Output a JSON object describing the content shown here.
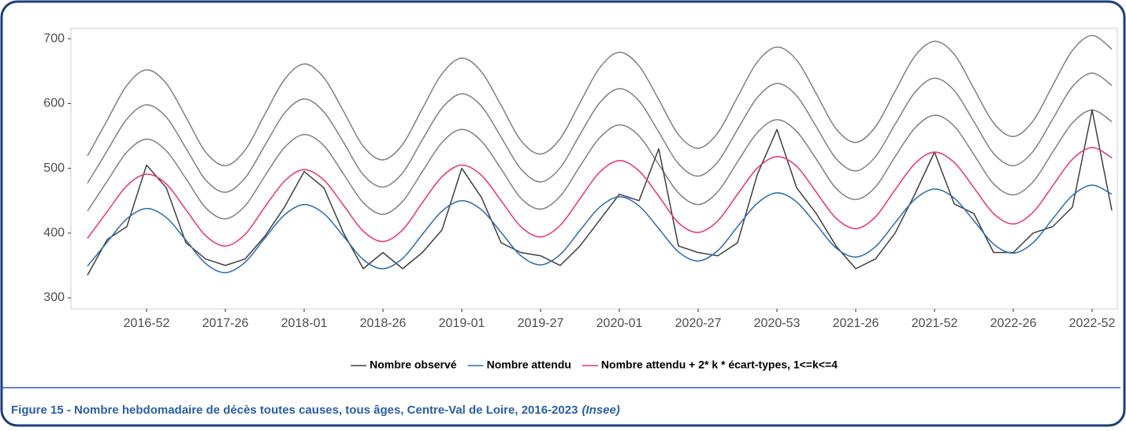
{
  "chart_data": {
    "type": "line",
    "title": "Figure 15 - Nombre hebdomadaire de décès toutes causes, tous âges, Centre-Val de Loire, 2016-2023",
    "source": "(Insee)",
    "categories": [
      null,
      null,
      null,
      "2016-52",
      null,
      null,
      null,
      "2017-26",
      null,
      null,
      null,
      "2018-01",
      null,
      null,
      null,
      "2018-26",
      null,
      null,
      null,
      "2019-01",
      null,
      null,
      null,
      "2019-27",
      null,
      null,
      null,
      "2020-01",
      null,
      null,
      null,
      "2020-27",
      null,
      null,
      null,
      "2020-53",
      null,
      null,
      null,
      "2021-26",
      null,
      null,
      null,
      "2021-52",
      null,
      null,
      null,
      "2022-26",
      null,
      null,
      null,
      "2022-52",
      null
    ],
    "ylim": [
      283,
      716
    ],
    "yticks": [
      300,
      400,
      500,
      600,
      700
    ],
    "grid": false,
    "legend": "bottom",
    "series": [
      {
        "color": "#808080",
        "values": [
          519,
          574,
          628,
          652,
          631,
          579,
          525,
          504,
          528,
          583,
          637,
          661,
          640,
          588,
          534,
          513,
          537,
          592,
          646,
          670,
          649,
          597,
          543,
          522,
          546,
          601,
          655,
          679,
          658,
          606,
          552,
          531,
          555,
          610,
          664,
          687,
          667,
          615,
          561,
          540,
          564,
          619,
          673,
          696,
          676,
          623,
          570,
          549,
          573,
          628,
          682,
          705,
          684
        ]
      },
      {
        "color": "#808080",
        "values": [
          477,
          527,
          576,
          598,
          579,
          531,
          482,
          463,
          485,
          535,
          585,
          607,
          587,
          540,
          490,
          471,
          493,
          544,
          593,
          615,
          596,
          548,
          499,
          479,
          501,
          552,
          601,
          623,
          604,
          556,
          507,
          488,
          510,
          560,
          609,
          631,
          612,
          564,
          515,
          496,
          518,
          568,
          617,
          639,
          620,
          572,
          523,
          504,
          526,
          576,
          626,
          647,
          628
        ]
      },
      {
        "color": "#808080",
        "values": [
          434,
          480,
          525,
          545,
          527,
          484,
          439,
          422,
          442,
          488,
          532,
          552,
          535,
          491,
          447,
          429,
          449,
          495,
          540,
          560,
          542,
          499,
          454,
          437,
          457,
          503,
          547,
          567,
          550,
          506,
          462,
          444,
          464,
          510,
          555,
          575,
          557,
          514,
          469,
          452,
          471,
          518,
          562,
          582,
          565,
          521,
          476,
          459,
          479,
          525,
          570,
          590,
          572
        ]
      },
      {
        "name": "Nombre observé",
        "color": "#404040",
        "smooth": false,
        "values": [
          335,
          390,
          410,
          505,
          470,
          385,
          360,
          350,
          360,
          395,
          440,
          495,
          470,
          400,
          345,
          370,
          345,
          370,
          405,
          500,
          455,
          385,
          370,
          365,
          350,
          380,
          420,
          460,
          450,
          530,
          380,
          370,
          365,
          385,
          490,
          560,
          470,
          430,
          380,
          345,
          360,
          400,
          460,
          525,
          445,
          430,
          370,
          370,
          400,
          410,
          440,
          590,
          435
        ]
      },
      {
        "name": "Nombre attendu",
        "color": "#2b6bb0",
        "values": [
          349,
          386,
          422,
          438,
          424,
          389,
          353,
          339,
          355,
          392,
          428,
          444,
          430,
          395,
          359,
          345,
          361,
          398,
          434,
          450,
          436,
          401,
          365,
          351,
          367,
          404,
          440,
          456,
          442,
          407,
          371,
          357,
          373,
          410,
          446,
          462,
          448,
          413,
          377,
          363,
          379,
          416,
          452,
          468,
          454,
          419,
          383,
          369,
          385,
          422,
          458,
          474,
          460
        ]
      },
      {
        "name": "Nombre attendu + 2* k * écart-types, 1<=k<=4",
        "color": "#e8336d",
        "values": [
          392,
          433,
          473,
          491,
          476,
          436,
          396,
          380,
          398,
          440,
          480,
          498,
          482,
          443,
          403,
          387,
          405,
          447,
          487,
          505,
          489,
          450,
          410,
          394,
          412,
          453,
          494,
          512,
          496,
          457,
          416,
          401,
          419,
          460,
          500,
          518,
          503,
          463,
          423,
          407,
          425,
          467,
          507,
          525,
          509,
          470,
          430,
          414,
          432,
          473,
          514,
          532,
          516
        ]
      }
    ]
  }
}
